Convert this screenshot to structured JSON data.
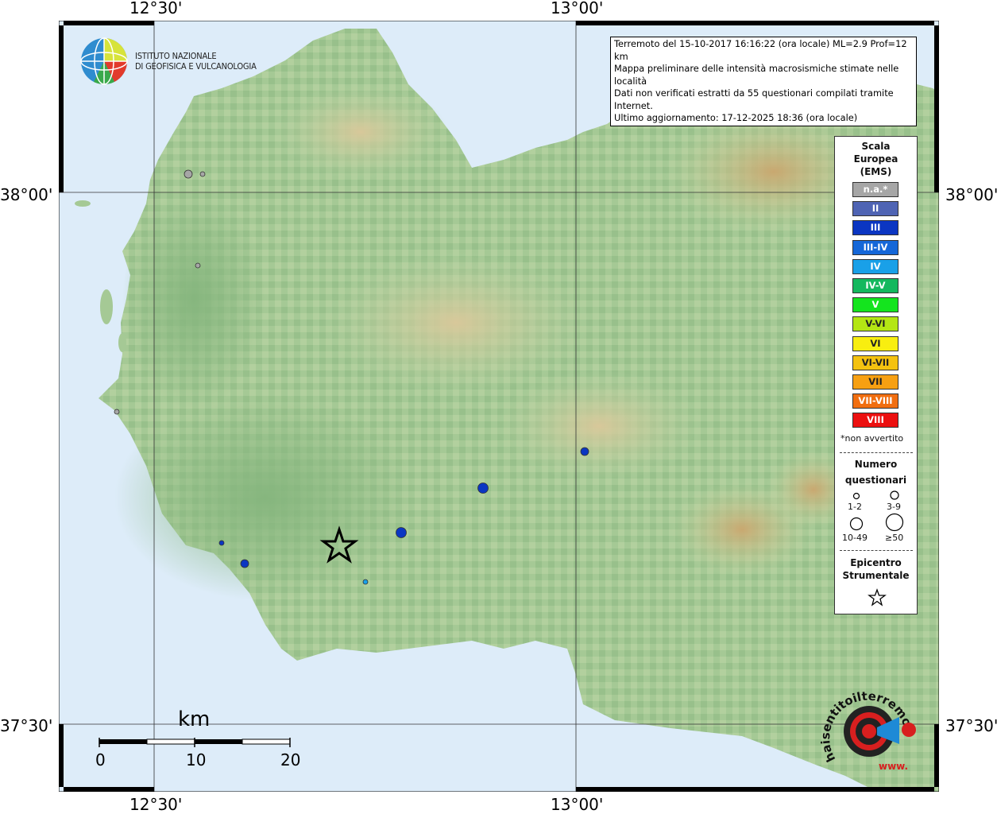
{
  "map": {
    "coords": {
      "top_left": "12°30'",
      "top_right": "13°00'",
      "bottom_left": "12°30'",
      "bottom_right": "13°00'",
      "left_upper": "38°00'",
      "left_lower": "37°30'",
      "right_upper": "38°00'",
      "right_lower": "37°30'"
    },
    "colors": {
      "sea": "#dcebf8",
      "land": "#9cc48f",
      "epicenter": "#000000"
    }
  },
  "info": {
    "line1": "Terremoto del 15-10-2017 16:16:22 (ora locale) ML=2.9 Prof=12 km",
    "line2": "Mappa preliminare delle intensità macrosismiche stimate nelle località",
    "line3": "Dati non verificati estratti da 55 questionari compilati tramite Internet.",
    "line4": "Ultimo aggiornamento: 17-12-2025 18:36 (ora locale)"
  },
  "logo": {
    "line1": "ISTITUTO NAZIONALE",
    "line2": "DI GEOFISICA E VULCANOLOGIA"
  },
  "legend": {
    "title_lines": [
      "Scala",
      "Europea",
      "(EMS)"
    ],
    "ems": [
      {
        "label": "n.a.*",
        "color": "#a6a6a6"
      },
      {
        "label": "II",
        "color": "#4f64b4"
      },
      {
        "label": "III",
        "color": "#0b36c2"
      },
      {
        "label": "III-IV",
        "color": "#1567d8"
      },
      {
        "label": "IV",
        "color": "#19a0e8"
      },
      {
        "label": "IV-V",
        "color": "#14b85e"
      },
      {
        "label": "V",
        "color": "#14e41e"
      },
      {
        "label": "V-VI",
        "color": "#b4e614"
      },
      {
        "label": "VI",
        "color": "#f8ee10"
      },
      {
        "label": "VI-VII",
        "color": "#f4c210"
      },
      {
        "label": "VII",
        "color": "#f7a012"
      },
      {
        "label": "VII-VIII",
        "color": "#f16e10"
      },
      {
        "label": "VIII",
        "color": "#ec1010"
      }
    ],
    "note": "*non avvertito",
    "count_title_lines": [
      "Numero",
      "questionari"
    ],
    "count_sizes": [
      "1-2",
      "3-9",
      "10-49",
      "≥50"
    ],
    "epicenter_title_lines": [
      "Epicentro",
      "Strumentale"
    ]
  },
  "scale": {
    "unit": "km",
    "ticks": [
      "0",
      "10",
      "20"
    ]
  },
  "points": [
    {
      "intensity": "n.a.*",
      "size": "3-9"
    },
    {
      "intensity": "n.a.*",
      "size": "1-2"
    },
    {
      "intensity": "n.a.*",
      "size": "1-2"
    },
    {
      "intensity": "n.a.*",
      "size": "1-2"
    },
    {
      "intensity": "III",
      "size": "1-2"
    },
    {
      "intensity": "III",
      "size": "3-9"
    },
    {
      "intensity": "III",
      "size": "10-49"
    },
    {
      "intensity": "III",
      "size": "10-49"
    },
    {
      "intensity": "III",
      "size": "3-9"
    },
    {
      "intensity": "IV",
      "size": "1-2"
    }
  ],
  "brand": {
    "text": "haisentitoilterremoto.it",
    "url_text": "www."
  }
}
